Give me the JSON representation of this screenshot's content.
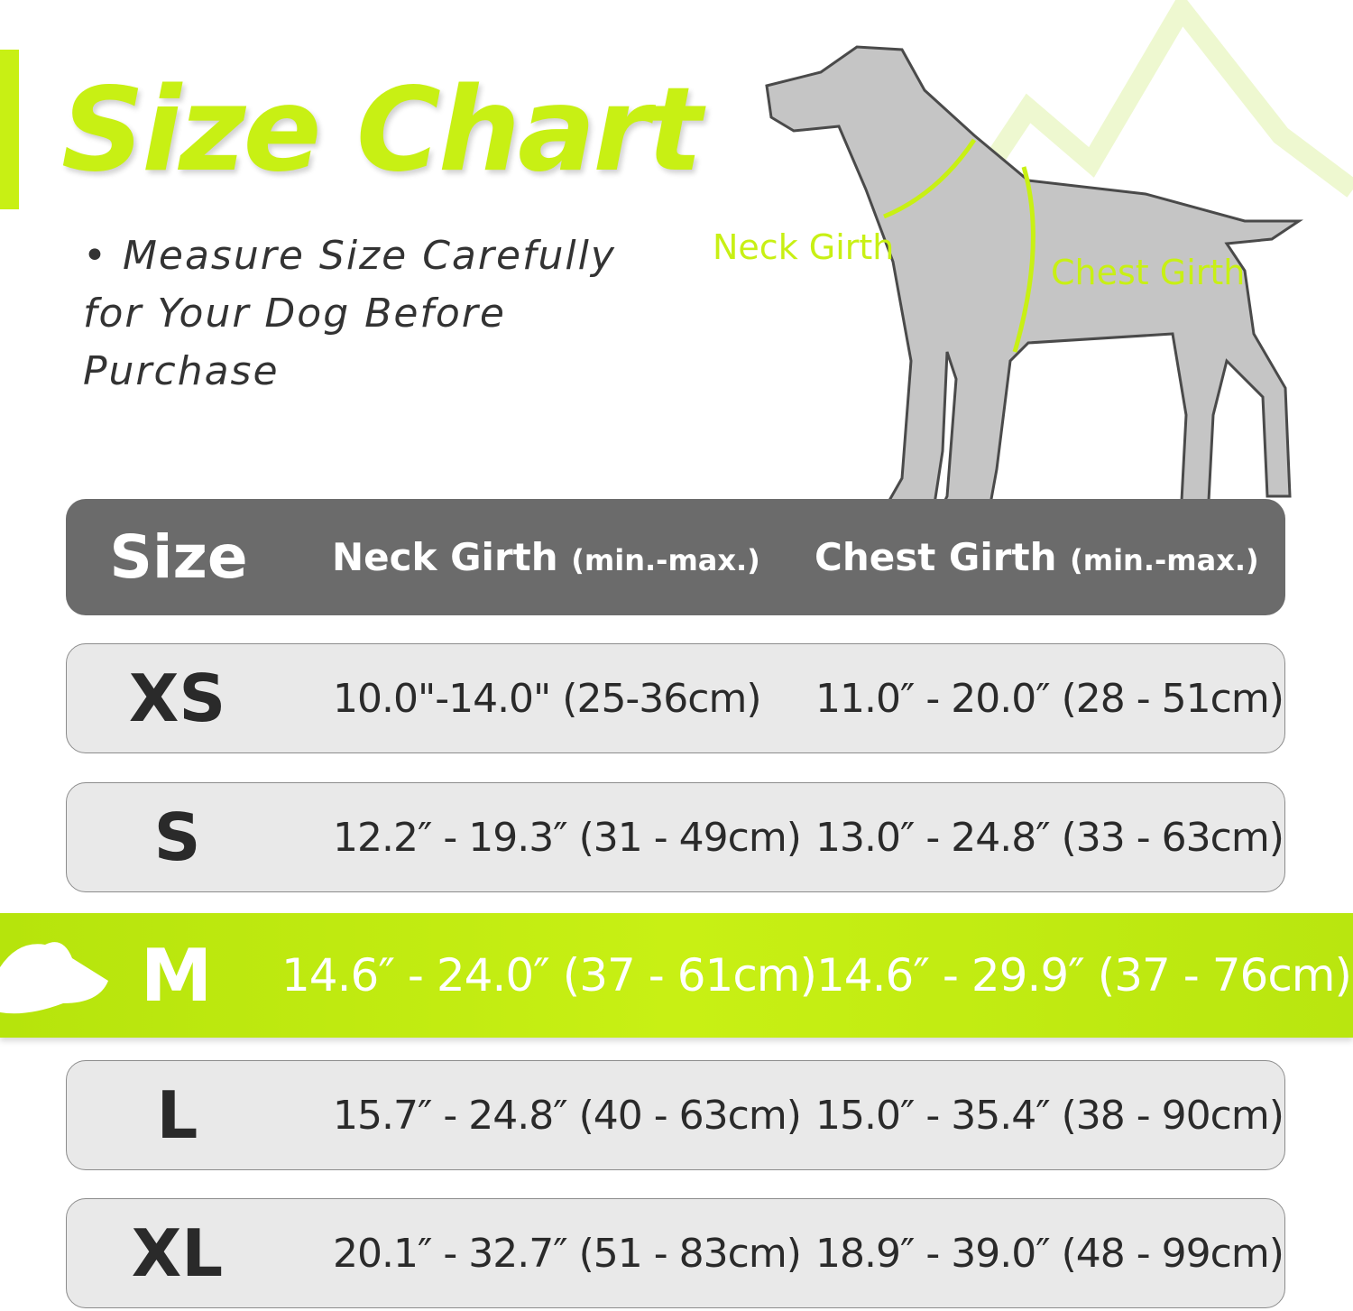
{
  "title": "Size Chart",
  "note": "• Measure Size Carefully for Your Dog Before Purchase",
  "diagram": {
    "neck_label": "Neck Girth",
    "chest_label": "Chest Girth"
  },
  "colors": {
    "accent": "#c8f014",
    "header": "#6b6b6b",
    "row": "#e9e9e9"
  },
  "table": {
    "headers": {
      "size": "Size",
      "neck": "Neck Girth",
      "neck_unit": "(min.-max.)",
      "chest": "Chest Girth",
      "chest_unit": "(min.-max.)"
    },
    "rows": [
      {
        "size": "XS",
        "neck": "10.0\"-14.0\" (25-36cm)",
        "chest": "11.0″ - 20.0″ (28 - 51cm)"
      },
      {
        "size": "S",
        "neck": "12.2″ - 19.3″ (31 - 49cm)",
        "chest": "13.0″ - 24.8″ (33 - 63cm)"
      },
      {
        "size": "M",
        "neck": "14.6″ - 24.0″ (37 - 61cm)",
        "chest": "14.6″ - 29.9″ (37 - 76cm)",
        "highlighted": true
      },
      {
        "size": "L",
        "neck": "15.7″ - 24.8″ (40 - 63cm)",
        "chest": "15.0″ - 35.4″ (38 - 90cm)"
      },
      {
        "size": "XL",
        "neck": "20.1″ - 32.7″ (51 - 83cm)",
        "chest": "18.9″ - 39.0″ (48 - 99cm)"
      }
    ]
  }
}
